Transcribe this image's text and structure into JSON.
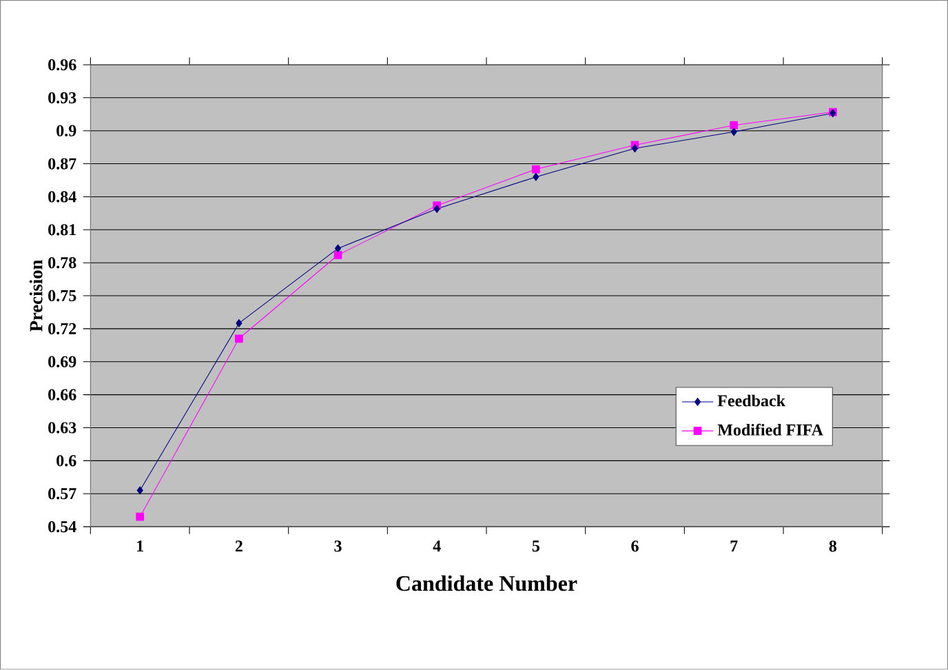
{
  "chart_data": {
    "type": "line",
    "xlabel": "Candidate Number",
    "ylabel": "Precision",
    "categories": [
      "1",
      "2",
      "3",
      "4",
      "5",
      "6",
      "7",
      "8"
    ],
    "series": [
      {
        "name": "Feedback",
        "color": "#000080",
        "marker": "diamond",
        "values": [
          0.573,
          0.725,
          0.793,
          0.829,
          0.858,
          0.884,
          0.899,
          0.916
        ]
      },
      {
        "name": "Modified FIFA",
        "color": "#ff00ff",
        "marker": "square",
        "values": [
          0.549,
          0.711,
          0.787,
          0.832,
          0.865,
          0.887,
          0.905,
          0.917
        ]
      }
    ],
    "ylim": [
      0.54,
      0.96
    ],
    "yticks": [
      0.54,
      0.57,
      0.6,
      0.63,
      0.66,
      0.69,
      0.72,
      0.75,
      0.78,
      0.81,
      0.84,
      0.87,
      0.9,
      0.93,
      0.96
    ],
    "grid": "y",
    "legend": "right",
    "line_style": "solid"
  }
}
